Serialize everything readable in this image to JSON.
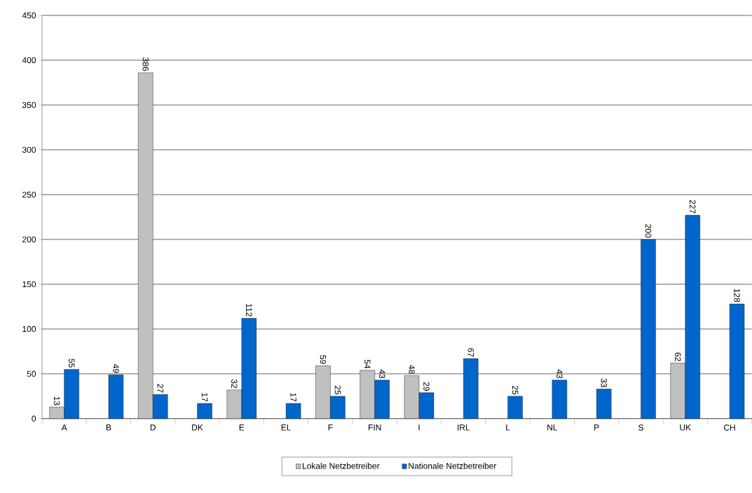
{
  "chart_data": {
    "type": "bar",
    "categories": [
      "A",
      "B",
      "D",
      "DK",
      "E",
      "EL",
      "F",
      "FIN",
      "I",
      "IRL",
      "L",
      "NL",
      "P",
      "S",
      "UK",
      "CH"
    ],
    "series": [
      {
        "name": "Lokale Netzbetreiber",
        "color": "#c0c0c0",
        "values": [
          13,
          null,
          386,
          null,
          32,
          null,
          59,
          54,
          48,
          null,
          null,
          null,
          null,
          null,
          62,
          null
        ]
      },
      {
        "name": "Nationale Netzbetreiber",
        "color": "#0066cc",
        "values": [
          55,
          49,
          27,
          17,
          112,
          17,
          25,
          43,
          29,
          67,
          25,
          43,
          33,
          200,
          227,
          128
        ]
      }
    ],
    "ylim": [
      0,
      450
    ],
    "yticks": [
      0,
      50,
      100,
      150,
      200,
      250,
      300,
      350,
      400,
      450
    ],
    "grid": "y",
    "legend": "bottom",
    "data_labels": true
  }
}
